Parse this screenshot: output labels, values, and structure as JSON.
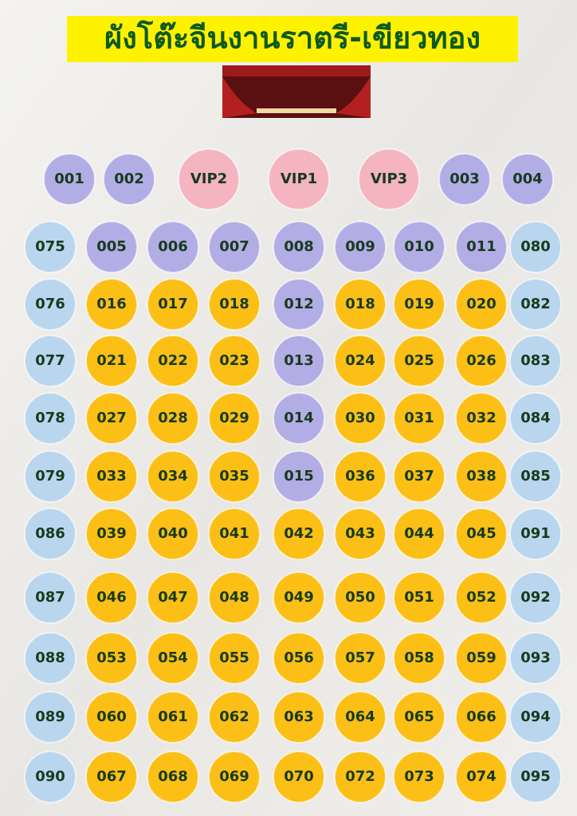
{
  "title": "ผังโต๊ะจีนงานราตรี-เขียวทอง",
  "rows": [
    [
      {
        "label": "001",
        "color": "#b3ade6"
      },
      {
        "label": "002",
        "color": "#b3ade6"
      },
      {
        "label": "VIP2",
        "color": "#f4b4c0"
      },
      {
        "label": "VIP1",
        "color": "#f4b4c0"
      },
      {
        "label": "VIP3",
        "color": "#f4b4c0"
      },
      {
        "label": "003",
        "color": "#b3ade6"
      },
      {
        "label": "004",
        "color": "#b3ade6"
      }
    ],
    [
      {
        "label": "075",
        "color": "#b9d6ee"
      },
      {
        "label": "005",
        "color": "#b3ade6"
      },
      {
        "label": "006",
        "color": "#b3ade6"
      },
      {
        "label": "007",
        "color": "#b3ade6"
      },
      {
        "label": "008",
        "color": "#b3ade6"
      },
      {
        "label": "009",
        "color": "#b3ade6"
      },
      {
        "label": "010",
        "color": "#b3ade6"
      },
      {
        "label": "011",
        "color": "#b3ade6"
      },
      {
        "label": "080",
        "color": "#b9d6ee"
      }
    ],
    [
      {
        "label": "076",
        "color": "#b9d6ee"
      },
      {
        "label": "016",
        "color": "#fbbf16"
      },
      {
        "label": "017",
        "color": "#fbbf16"
      },
      {
        "label": "018",
        "color": "#fbbf16"
      },
      {
        "label": "012",
        "color": "#b3ade6"
      },
      {
        "label": "018",
        "color": "#fbbf16"
      },
      {
        "label": "019",
        "color": "#fbbf16"
      },
      {
        "label": "020",
        "color": "#fbbf16"
      },
      {
        "label": "082",
        "color": "#b9d6ee"
      }
    ],
    [
      {
        "label": "077",
        "color": "#b9d6ee"
      },
      {
        "label": "021",
        "color": "#fbbf16"
      },
      {
        "label": "022",
        "color": "#fbbf16"
      },
      {
        "label": "023",
        "color": "#fbbf16"
      },
      {
        "label": "013",
        "color": "#b3ade6"
      },
      {
        "label": "024",
        "color": "#fbbf16"
      },
      {
        "label": "025",
        "color": "#fbbf16"
      },
      {
        "label": "026",
        "color": "#fbbf16"
      },
      {
        "label": "083",
        "color": "#b9d6ee"
      }
    ],
    [
      {
        "label": "078",
        "color": "#b9d6ee"
      },
      {
        "label": "027",
        "color": "#fbbf16"
      },
      {
        "label": "028",
        "color": "#fbbf16"
      },
      {
        "label": "029",
        "color": "#fbbf16"
      },
      {
        "label": "014",
        "color": "#b3ade6"
      },
      {
        "label": "030",
        "color": "#fbbf16"
      },
      {
        "label": "031",
        "color": "#fbbf16"
      },
      {
        "label": "032",
        "color": "#fbbf16"
      },
      {
        "label": "084",
        "color": "#b9d6ee"
      }
    ],
    [
      {
        "label": "079",
        "color": "#b9d6ee"
      },
      {
        "label": "033",
        "color": "#fbbf16"
      },
      {
        "label": "034",
        "color": "#fbbf16"
      },
      {
        "label": "035",
        "color": "#fbbf16"
      },
      {
        "label": "015",
        "color": "#b3ade6"
      },
      {
        "label": "036",
        "color": "#fbbf16"
      },
      {
        "label": "037",
        "color": "#fbbf16"
      },
      {
        "label": "038",
        "color": "#fbbf16"
      },
      {
        "label": "085",
        "color": "#b9d6ee"
      }
    ],
    [
      {
        "label": "086",
        "color": "#b9d6ee"
      },
      {
        "label": "039",
        "color": "#fbbf16"
      },
      {
        "label": "040",
        "color": "#fbbf16"
      },
      {
        "label": "041",
        "color": "#fbbf16"
      },
      {
        "label": "042",
        "color": "#fbbf16"
      },
      {
        "label": "043",
        "color": "#fbbf16"
      },
      {
        "label": "044",
        "color": "#fbbf16"
      },
      {
        "label": "045",
        "color": "#fbbf16"
      },
      {
        "label": "091",
        "color": "#b9d6ee"
      }
    ],
    [
      {
        "label": "087",
        "color": "#b9d6ee"
      },
      {
        "label": "046",
        "color": "#fbbf16"
      },
      {
        "label": "047",
        "color": "#fbbf16"
      },
      {
        "label": "048",
        "color": "#fbbf16"
      },
      {
        "label": "049",
        "color": "#fbbf16"
      },
      {
        "label": "050",
        "color": "#fbbf16"
      },
      {
        "label": "051",
        "color": "#fbbf16"
      },
      {
        "label": "052",
        "color": "#fbbf16"
      },
      {
        "label": "092",
        "color": "#b9d6ee"
      }
    ],
    [
      {
        "label": "088",
        "color": "#b9d6ee"
      },
      {
        "label": "053",
        "color": "#fbbf16"
      },
      {
        "label": "054",
        "color": "#fbbf16"
      },
      {
        "label": "055",
        "color": "#fbbf16"
      },
      {
        "label": "056",
        "color": "#fbbf16"
      },
      {
        "label": "057",
        "color": "#fbbf16"
      },
      {
        "label": "058",
        "color": "#fbbf16"
      },
      {
        "label": "059",
        "color": "#fbbf16"
      },
      {
        "label": "093",
        "color": "#b9d6ee"
      }
    ],
    [
      {
        "label": "089",
        "color": "#b9d6ee"
      },
      {
        "label": "060",
        "color": "#fbbf16"
      },
      {
        "label": "061",
        "color": "#fbbf16"
      },
      {
        "label": "062",
        "color": "#fbbf16"
      },
      {
        "label": "063",
        "color": "#fbbf16"
      },
      {
        "label": "064",
        "color": "#fbbf16"
      },
      {
        "label": "065",
        "color": "#fbbf16"
      },
      {
        "label": "066",
        "color": "#fbbf16"
      },
      {
        "label": "094",
        "color": "#b9d6ee"
      }
    ],
    [
      {
        "label": "090",
        "color": "#b9d6ee"
      },
      {
        "label": "067",
        "color": "#fbbf16"
      },
      {
        "label": "068",
        "color": "#fbbf16"
      },
      {
        "label": "069",
        "color": "#fbbf16"
      },
      {
        "label": "070",
        "color": "#fbbf16"
      },
      {
        "label": "072",
        "color": "#fbbf16"
      },
      {
        "label": "073",
        "color": "#fbbf16"
      },
      {
        "label": "074",
        "color": "#fbbf16"
      },
      {
        "label": "095",
        "color": "#b9d6ee"
      }
    ]
  ]
}
